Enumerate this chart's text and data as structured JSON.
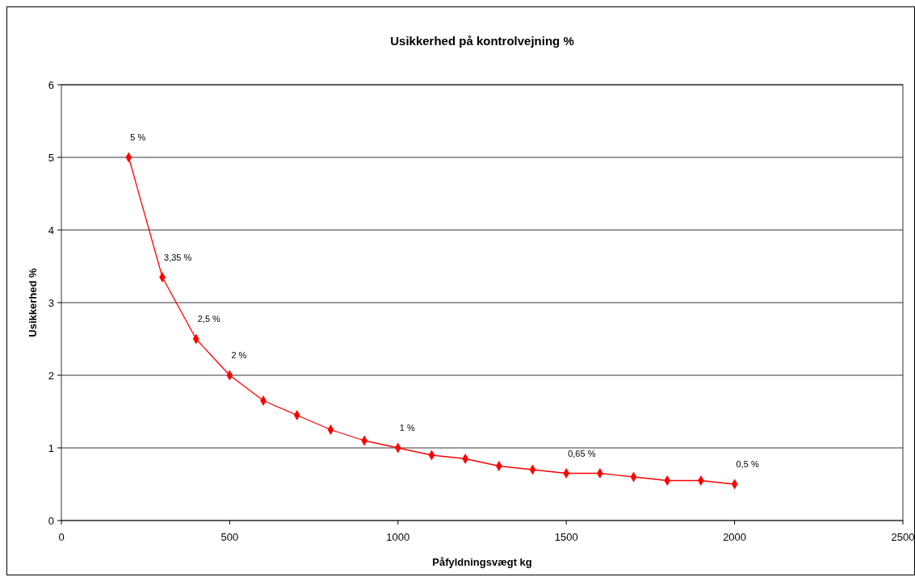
{
  "chart_data": {
    "type": "line",
    "title": "Usikkerhed på kontrolvejning %",
    "xlabel": "Påfyldningsvægt kg",
    "ylabel": "Usikkerhed %",
    "x": [
      200,
      300,
      400,
      500,
      600,
      700,
      800,
      900,
      1000,
      1100,
      1200,
      1300,
      1400,
      1500,
      1600,
      1700,
      1800,
      1900,
      2000
    ],
    "series": [
      {
        "color": "#ff0000",
        "values": [
          5,
          3.35,
          2.5,
          2,
          1.65,
          1.45,
          1.25,
          1.1,
          1,
          0.9,
          0.85,
          0.75,
          0.7,
          0.65,
          0.65,
          0.6,
          0.55,
          0.55,
          0.5
        ],
        "value_labels": [
          "5 %",
          "3,35 %",
          "2,5 %",
          "2 %",
          null,
          null,
          null,
          null,
          "1 %",
          null,
          null,
          null,
          null,
          "0,65 %",
          null,
          null,
          null,
          null,
          "0,5 %"
        ]
      }
    ],
    "xlim": [
      0,
      2500
    ],
    "xticks": [
      0,
      500,
      1000,
      1500,
      2000,
      2500
    ],
    "ylim": [
      0,
      6
    ],
    "yticks": [
      0,
      1,
      2,
      3,
      4,
      5,
      6
    ],
    "grid": "y",
    "marker": "diamond",
    "line_style": "solid"
  }
}
